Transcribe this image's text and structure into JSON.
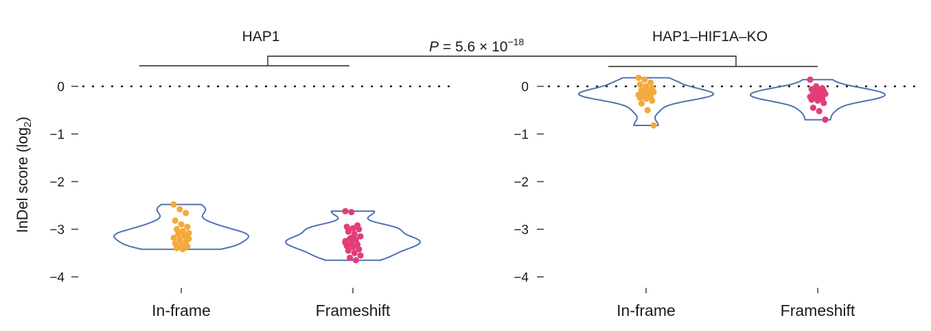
{
  "chart_data": {
    "type": "violin",
    "ylabel": "InDel score (log",
    "ylabel_sub": "2",
    "ylabel_end": ")",
    "ylim": [
      -4,
      0
    ],
    "yticks": [
      {
        "value": 0,
        "label": "0"
      },
      {
        "value": -1,
        "label": "−1"
      },
      {
        "value": -2,
        "label": "−2"
      },
      {
        "value": -3,
        "label": "−3"
      },
      {
        "value": -4,
        "label": "−4"
      }
    ],
    "reference_line": 0,
    "colors": {
      "in_frame": "#f4a93c",
      "frameshift": "#e23d7a",
      "violin": "#4a72b0"
    },
    "comparison": {
      "p_italic": "P",
      "p_text": " = 5.6 × 10",
      "p_exp": "−18"
    },
    "panels": [
      {
        "title": "HAP1",
        "groups": [
          {
            "category": "In-frame",
            "color": "in_frame",
            "values": [
              -2.48,
              -2.58,
              -2.66,
              -2.82,
              -2.9,
              -2.95,
              -3.0,
              -3.04,
              -3.08,
              -3.1,
              -3.14,
              -3.18,
              -3.22,
              -3.26,
              -3.3,
              -3.33,
              -3.36,
              -3.4,
              -3.42,
              -3.2,
              -3.1
            ]
          },
          {
            "category": "Frameshift",
            "color": "frameshift",
            "values": [
              -2.62,
              -2.64,
              -2.92,
              -2.95,
              -2.98,
              -3.0,
              -3.05,
              -3.1,
              -3.15,
              -3.2,
              -3.22,
              -3.25,
              -3.3,
              -3.32,
              -3.35,
              -3.38,
              -3.42,
              -3.45,
              -3.5,
              -3.55,
              -3.6,
              -3.65,
              -3.28,
              -3.18
            ]
          }
        ]
      },
      {
        "title": "HAP1–HIF1A–KO",
        "groups": [
          {
            "category": "In-frame",
            "color": "in_frame",
            "values": [
              0.18,
              0.14,
              0.08,
              0.04,
              0.0,
              -0.04,
              -0.08,
              -0.1,
              -0.12,
              -0.14,
              -0.16,
              -0.18,
              -0.2,
              -0.22,
              -0.24,
              -0.26,
              -0.3,
              -0.36,
              -0.5,
              -0.82,
              -0.2,
              -0.12
            ]
          },
          {
            "category": "Frameshift",
            "color": "frameshift",
            "values": [
              0.14,
              0.0,
              -0.04,
              -0.06,
              -0.08,
              -0.1,
              -0.12,
              -0.14,
              -0.16,
              -0.18,
              -0.2,
              -0.22,
              -0.24,
              -0.26,
              -0.28,
              -0.3,
              -0.35,
              -0.45,
              -0.52,
              -0.7,
              -0.15,
              -0.25
            ]
          }
        ]
      }
    ]
  }
}
